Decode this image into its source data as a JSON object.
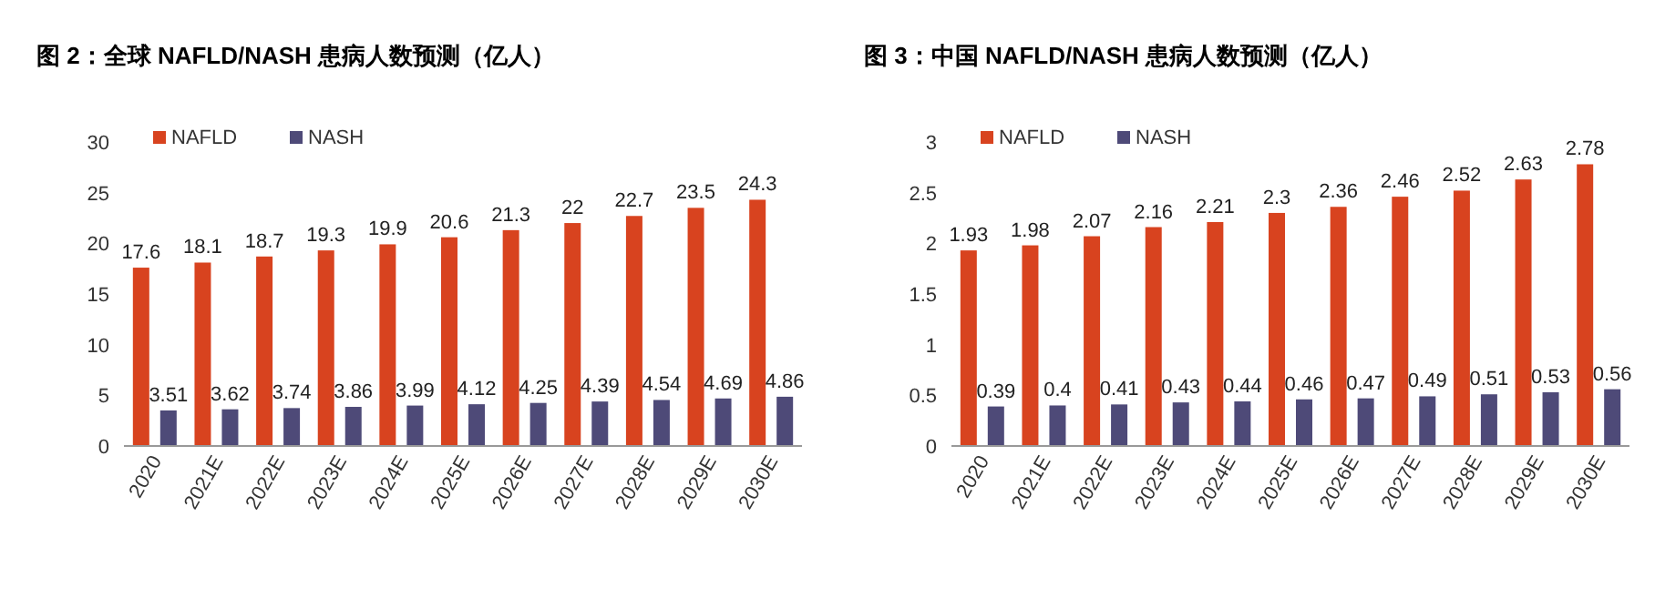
{
  "chart_data": [
    {
      "type": "bar",
      "title": "图 2：全球 NAFLD/NASH 患病人数预测（亿人）",
      "categories": [
        "2020",
        "2021E",
        "2022E",
        "2023E",
        "2024E",
        "2025E",
        "2026E",
        "2027E",
        "2028E",
        "2029E",
        "2030E"
      ],
      "series": [
        {
          "name": "NAFLD",
          "color": "#d8431f",
          "values": [
            17.6,
            18.1,
            18.7,
            19.3,
            19.9,
            20.6,
            21.3,
            22,
            22.7,
            23.5,
            24.3
          ]
        },
        {
          "name": "NASH",
          "color": "#4e4a78",
          "values": [
            3.51,
            3.62,
            3.74,
            3.86,
            3.99,
            4.12,
            4.25,
            4.39,
            4.54,
            4.69,
            4.86
          ]
        }
      ],
      "ylim": [
        0,
        30
      ],
      "yticks": [
        0,
        5,
        10,
        15,
        20,
        25,
        30
      ],
      "data_labels": true,
      "legend": "top left"
    },
    {
      "type": "bar",
      "title": "图 3：中国 NAFLD/NASH 患病人数预测（亿人）",
      "categories": [
        "2020",
        "2021E",
        "2022E",
        "2023E",
        "2024E",
        "2025E",
        "2026E",
        "2027E",
        "2028E",
        "2029E",
        "2030E"
      ],
      "series": [
        {
          "name": "NAFLD",
          "color": "#d8431f",
          "values": [
            1.93,
            1.98,
            2.07,
            2.16,
            2.21,
            2.3,
            2.36,
            2.46,
            2.52,
            2.63,
            2.78
          ]
        },
        {
          "name": "NASH",
          "color": "#4e4a78",
          "values": [
            0.39,
            0.4,
            0.41,
            0.43,
            0.44,
            0.46,
            0.47,
            0.49,
            0.51,
            0.53,
            0.56
          ]
        }
      ],
      "ylim": [
        0,
        3
      ],
      "yticks": [
        0,
        0.5,
        1,
        1.5,
        2,
        2.5,
        3
      ],
      "data_labels": true,
      "legend": "top left"
    }
  ]
}
